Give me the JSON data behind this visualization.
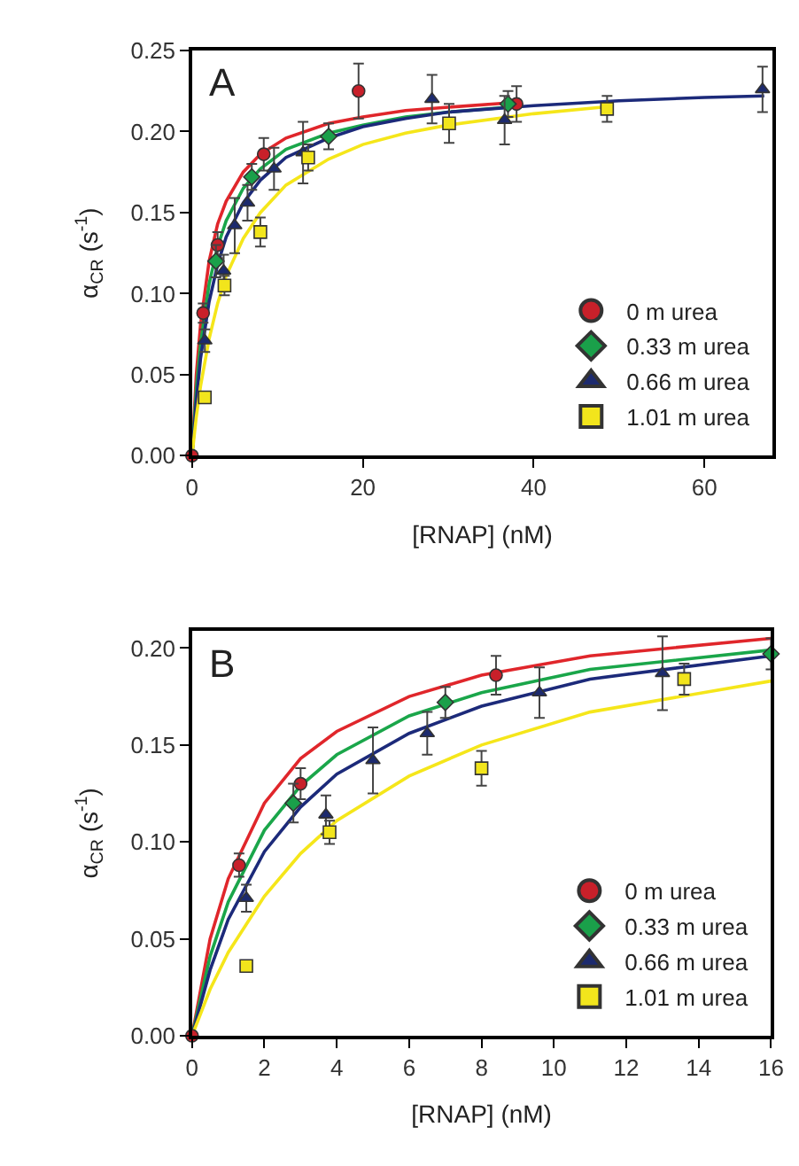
{
  "chart_data": [
    {
      "type": "scatter",
      "title": "A",
      "xlabel": "[RNAP] (nM)",
      "ylabel": "α$_{CR}$ (s$^{-1}$)",
      "xlim": [
        0,
        68
      ],
      "xticks": [
        0,
        20,
        40,
        60
      ],
      "ylim": [
        0,
        0.25
      ],
      "yticks": [
        {
          "value": 0,
          "label": "0.00"
        },
        {
          "value": 0.05,
          "label": "0.05"
        },
        {
          "value": 0.1,
          "label": "0.10"
        },
        {
          "value": 0.15,
          "label": "0.15"
        },
        {
          "value": 0.2,
          "label": "0.20"
        },
        {
          "value": 0.25,
          "label": "0.25"
        }
      ],
      "legend": "bottom right",
      "series": [
        {
          "type": "line",
          "color": "#e0262b",
          "x": [
            0,
            0.5,
            1,
            2,
            3,
            4,
            6,
            8,
            11,
            16,
            20,
            25,
            30,
            38
          ],
          "values": [
            0,
            0.05,
            0.081,
            0.12,
            0.143,
            0.157,
            0.175,
            0.186,
            0.196,
            0.205,
            0.209,
            0.213,
            0.215,
            0.218
          ]
        },
        {
          "type": "line",
          "color": "#1aa64a",
          "x": [
            0,
            0.5,
            1,
            2,
            3,
            4,
            6,
            8,
            11,
            16,
            20,
            25,
            30,
            37
          ],
          "values": [
            0,
            0.041,
            0.069,
            0.106,
            0.129,
            0.145,
            0.165,
            0.177,
            0.189,
            0.199,
            0.204,
            0.209,
            0.212,
            0.215
          ]
        },
        {
          "type": "line",
          "color": "#1c2a7a",
          "x": [
            0,
            0.5,
            1,
            2,
            3,
            4,
            6,
            8,
            11,
            16,
            20,
            25,
            30,
            40,
            50,
            60,
            67
          ],
          "values": [
            0,
            0.034,
            0.06,
            0.095,
            0.118,
            0.135,
            0.156,
            0.17,
            0.184,
            0.196,
            0.203,
            0.208,
            0.212,
            0.216,
            0.219,
            0.221,
            0.222
          ]
        },
        {
          "type": "line",
          "color": "#f5e61a",
          "x": [
            0,
            0.5,
            1,
            2,
            3,
            4,
            6,
            8,
            11,
            16,
            20,
            25,
            30,
            40,
            48
          ],
          "values": [
            0,
            0.024,
            0.043,
            0.072,
            0.094,
            0.111,
            0.134,
            0.15,
            0.167,
            0.183,
            0.192,
            0.199,
            0.204,
            0.211,
            0.215
          ]
        },
        {
          "name": "0 m urea",
          "color": "#c8202a",
          "marker": "circle",
          "x": [
            0,
            1.3,
            3.0,
            8.4,
            19.5,
            38.0
          ],
          "values": [
            0,
            0.088,
            0.13,
            0.186,
            0.225,
            0.217
          ],
          "errors": [
            null,
            0.006,
            0.008,
            0.01,
            0.017,
            0.011
          ]
        },
        {
          "name": "0.33 m urea",
          "color": "#1aa04a",
          "marker": "diamond",
          "x": [
            2.8,
            7.0,
            16.0,
            37.0
          ],
          "values": [
            0.12,
            0.172,
            0.197,
            0.217
          ],
          "errors": [
            0.01,
            0.008,
            0.008,
            0.008
          ]
        },
        {
          "name": "0.66 m urea",
          "color": "#1c2a6e",
          "marker": "triangle",
          "x": [
            1.5,
            3.7,
            5.0,
            6.5,
            9.6,
            13.0,
            28.1,
            36.6,
            66.8
          ],
          "values": [
            0.071,
            0.114,
            0.142,
            0.156,
            0.177,
            0.187,
            0.22,
            0.207,
            0.226
          ],
          "errors": [
            0.007,
            0.01,
            0.017,
            0.011,
            0.013,
            0.019,
            0.015,
            0.015,
            0.014
          ]
        },
        {
          "name": "1.01 m urea",
          "color": "#f2e51c",
          "marker": "square",
          "x": [
            1.5,
            3.8,
            8.0,
            13.6,
            30.1,
            48.6
          ],
          "values": [
            0.036,
            0.105,
            0.138,
            0.184,
            0.205,
            0.214
          ],
          "errors": [
            null,
            0.006,
            0.009,
            0.008,
            0.012,
            0.008
          ]
        }
      ]
    },
    {
      "type": "scatter",
      "title": "B",
      "xlabel": "[RNAP] (nM)",
      "ylabel": "α$_{CR}$ (s$^{-1}$)",
      "xlim": [
        0,
        16
      ],
      "xticks": [
        0,
        2,
        4,
        6,
        8,
        10,
        12,
        14,
        16
      ],
      "ylim": [
        0,
        0.209
      ],
      "yticks": [
        {
          "value": 0,
          "label": "0.00"
        },
        {
          "value": 0.05,
          "label": "0.05"
        },
        {
          "value": 0.1,
          "label": "0.10"
        },
        {
          "value": 0.15,
          "label": "0.15"
        },
        {
          "value": 0.2,
          "label": "0.20"
        }
      ],
      "legend": "bottom right",
      "series": [
        {
          "type": "line",
          "color": "#e0262b",
          "x": [
            0,
            0.5,
            1,
            2,
            3,
            4,
            6,
            8,
            11,
            16
          ],
          "values": [
            0,
            0.05,
            0.081,
            0.12,
            0.143,
            0.157,
            0.175,
            0.186,
            0.196,
            0.205
          ]
        },
        {
          "type": "line",
          "color": "#1aa64a",
          "x": [
            0,
            0.5,
            1,
            2,
            3,
            4,
            6,
            8,
            11,
            16
          ],
          "values": [
            0,
            0.041,
            0.069,
            0.106,
            0.129,
            0.145,
            0.165,
            0.177,
            0.189,
            0.199
          ]
        },
        {
          "type": "line",
          "color": "#1c2a7a",
          "x": [
            0,
            0.5,
            1,
            2,
            3,
            4,
            6,
            8,
            11,
            16
          ],
          "values": [
            0,
            0.034,
            0.06,
            0.095,
            0.118,
            0.135,
            0.156,
            0.17,
            0.184,
            0.196
          ]
        },
        {
          "type": "line",
          "color": "#f5e61a",
          "x": [
            0,
            0.5,
            1,
            2,
            3,
            4,
            6,
            8,
            11,
            16
          ],
          "values": [
            0,
            0.024,
            0.043,
            0.072,
            0.094,
            0.111,
            0.134,
            0.15,
            0.167,
            0.183
          ]
        },
        {
          "name": "0 m urea",
          "color": "#c8202a",
          "marker": "circle",
          "x": [
            0,
            1.3,
            3.0,
            8.4
          ],
          "values": [
            0,
            0.088,
            0.13,
            0.186
          ],
          "errors": [
            null,
            0.006,
            0.008,
            0.01
          ]
        },
        {
          "name": "0.33 m urea",
          "color": "#1aa04a",
          "marker": "diamond",
          "x": [
            2.8,
            7.0,
            16.0
          ],
          "values": [
            0.12,
            0.172,
            0.197
          ],
          "errors": [
            0.01,
            0.008,
            0.008
          ]
        },
        {
          "name": "0.66 m urea",
          "color": "#1c2a6e",
          "marker": "triangle",
          "x": [
            1.5,
            3.7,
            5.0,
            6.5,
            9.6,
            13.0
          ],
          "values": [
            0.071,
            0.114,
            0.142,
            0.156,
            0.177,
            0.187
          ],
          "errors": [
            0.007,
            0.01,
            0.017,
            0.011,
            0.013,
            0.019
          ]
        },
        {
          "name": "1.01 m urea",
          "color": "#f2e51c",
          "marker": "square",
          "x": [
            1.5,
            3.8,
            8.0,
            13.6
          ],
          "values": [
            0.036,
            0.105,
            0.138,
            0.184
          ],
          "errors": [
            null,
            0.006,
            0.009,
            0.008
          ]
        }
      ]
    }
  ]
}
